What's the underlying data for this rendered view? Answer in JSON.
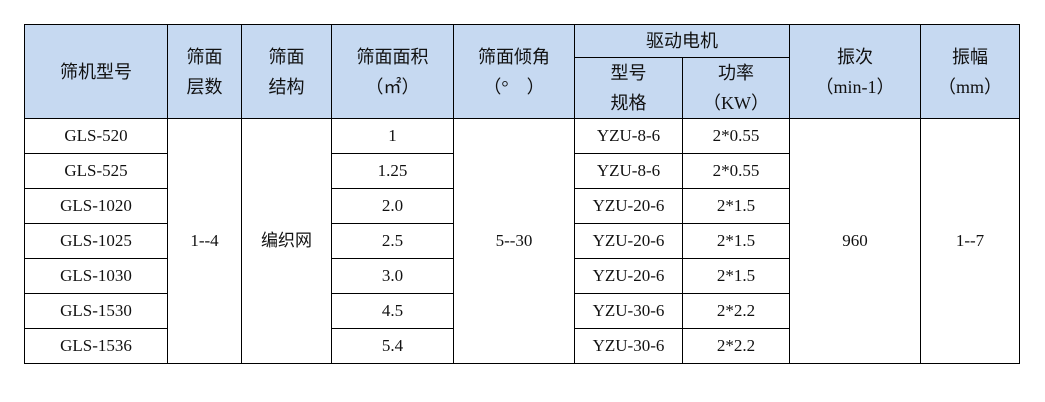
{
  "header": {
    "model": "筛机型号",
    "layers": [
      "筛面",
      "层数"
    ],
    "structure": [
      "筛面",
      "结构"
    ],
    "area": [
      "筛面面积",
      "（㎡）"
    ],
    "angle": [
      "筛面倾角",
      "（°　）"
    ],
    "motor": "驱动电机",
    "motor_spec": [
      "型号",
      "规格"
    ],
    "motor_power": [
      "功率",
      "（KW）"
    ],
    "frequency": [
      "振次",
      "（min-1）"
    ],
    "amplitude": [
      "振幅",
      "（mm）"
    ]
  },
  "merged": {
    "layers": "1--4",
    "structure": "编织网",
    "angle": "5--30",
    "frequency": "960",
    "amplitude": "1--7"
  },
  "rows": [
    {
      "model": "GLS-520",
      "area": "1",
      "spec": "YZU-8-6",
      "power": "2*0.55"
    },
    {
      "model": "GLS-525",
      "area": "1.25",
      "spec": "YZU-8-6",
      "power": "2*0.55"
    },
    {
      "model": "GLS-1020",
      "area": "2.0",
      "spec": "YZU-20-6",
      "power": "2*1.5"
    },
    {
      "model": "GLS-1025",
      "area": "2.5",
      "spec": "YZU-20-6",
      "power": "2*1.5"
    },
    {
      "model": "GLS-1030",
      "area": "3.0",
      "spec": "YZU-20-6",
      "power": "2*1.5"
    },
    {
      "model": "GLS-1530",
      "area": "4.5",
      "spec": "YZU-30-6",
      "power": "2*2.2"
    },
    {
      "model": "GLS-1536",
      "area": "5.4",
      "spec": "YZU-30-6",
      "power": "2*2.2"
    }
  ],
  "colors": {
    "header_bg": "#c6d9f1",
    "border": "#000000"
  }
}
